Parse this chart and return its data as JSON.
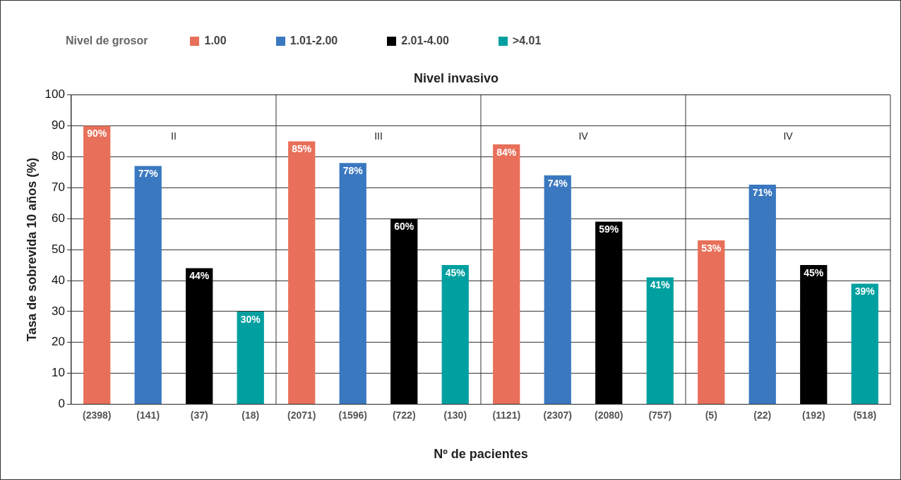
{
  "chart_data": {
    "type": "bar",
    "title": "Nivel invasivo",
    "xlabel": "Nº de pacientes",
    "ylabel": "Tasa de sobrevida 10 años (%)",
    "legend_title": "Nivel de grosor",
    "legend": "top left",
    "grid": "y",
    "categories": [
      "(2398)",
      "(141)",
      "(37)",
      "(18)",
      "(2071)",
      "(1596)",
      "(722)",
      "(130)",
      "(1121)",
      "(2307)",
      "(2080)",
      "(757)",
      "(5)",
      "(22)",
      "(192)",
      "(518)"
    ],
    "annotations": [
      "II",
      "III",
      "IV",
      "IV"
    ],
    "ylim": [
      0,
      100
    ],
    "yticks": [
      0,
      10,
      20,
      30,
      40,
      50,
      60,
      70,
      80,
      90,
      100
    ],
    "series": [
      {
        "name": "1.00",
        "color": "#e8705a",
        "values": [
          90,
          null,
          null,
          null,
          85,
          null,
          null,
          null,
          84,
          null,
          null,
          null,
          53,
          null,
          null,
          null
        ],
        "value_labels": [
          "90%",
          null,
          null,
          null,
          "85%",
          null,
          null,
          null,
          "84%",
          null,
          null,
          null,
          "53%",
          null,
          null,
          null
        ]
      },
      {
        "name": "1.01-2.00",
        "color": "#3a78c0",
        "values": [
          null,
          77,
          null,
          null,
          null,
          78,
          null,
          null,
          null,
          74,
          null,
          null,
          null,
          71,
          null,
          null
        ],
        "value_labels": [
          null,
          "77%",
          null,
          null,
          null,
          "78%",
          null,
          null,
          null,
          "74%",
          null,
          null,
          null,
          "71%",
          null,
          null
        ]
      },
      {
        "name": "2.01-4.00",
        "color": "#000000",
        "values": [
          null,
          null,
          44,
          null,
          null,
          null,
          60,
          null,
          null,
          null,
          59,
          null,
          null,
          null,
          45,
          null
        ],
        "value_labels": [
          null,
          null,
          "44%",
          null,
          null,
          null,
          "60%",
          null,
          null,
          null,
          "59%",
          null,
          null,
          null,
          "45%",
          null
        ]
      },
      {
        "name": ">4.01",
        "color": "#00a0a0",
        "values": [
          null,
          null,
          null,
          30,
          null,
          null,
          null,
          45,
          null,
          null,
          null,
          41,
          null,
          null,
          null,
          39
        ],
        "value_labels": [
          null,
          null,
          null,
          "30%",
          null,
          null,
          null,
          "45%",
          null,
          null,
          null,
          "41%",
          null,
          null,
          null,
          "39%"
        ]
      }
    ]
  }
}
